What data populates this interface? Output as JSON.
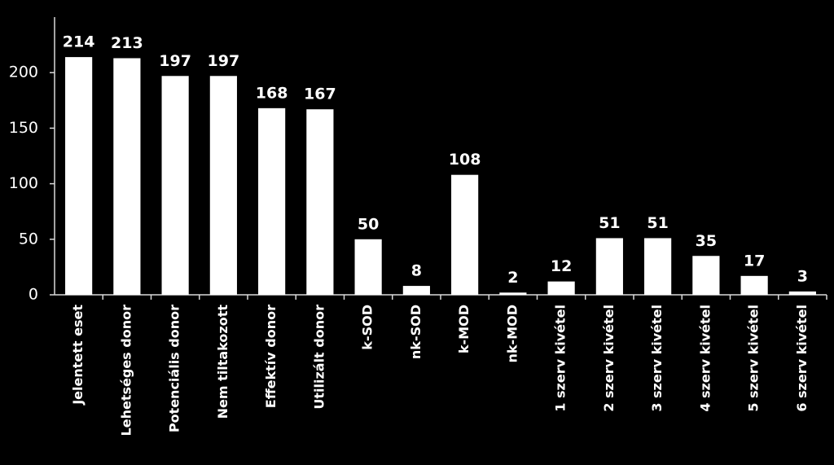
{
  "chart_data": {
    "type": "bar",
    "categories": [
      "Jelentett eset",
      "Lehetséges donor",
      "Potenciális donor",
      "Nem tiltakozott",
      "Effektív donor",
      "Utilizált donor",
      "k-SOD",
      "nk-SOD",
      "k-MOD",
      "nk-MOD",
      "1 szerv kivétel",
      "2 szerv kivétel",
      "3 szerv kivétel",
      "4 szerv kivétel",
      "5 szerv kivétel",
      "6 szerv kivétel"
    ],
    "values": [
      214,
      213,
      197,
      197,
      168,
      167,
      50,
      8,
      108,
      2,
      12,
      51,
      51,
      35,
      17,
      3
    ],
    "color": "#ffffff",
    "ylim": [
      0,
      250
    ],
    "yticks": [
      0,
      50,
      100,
      150,
      200
    ],
    "grid": false
  }
}
